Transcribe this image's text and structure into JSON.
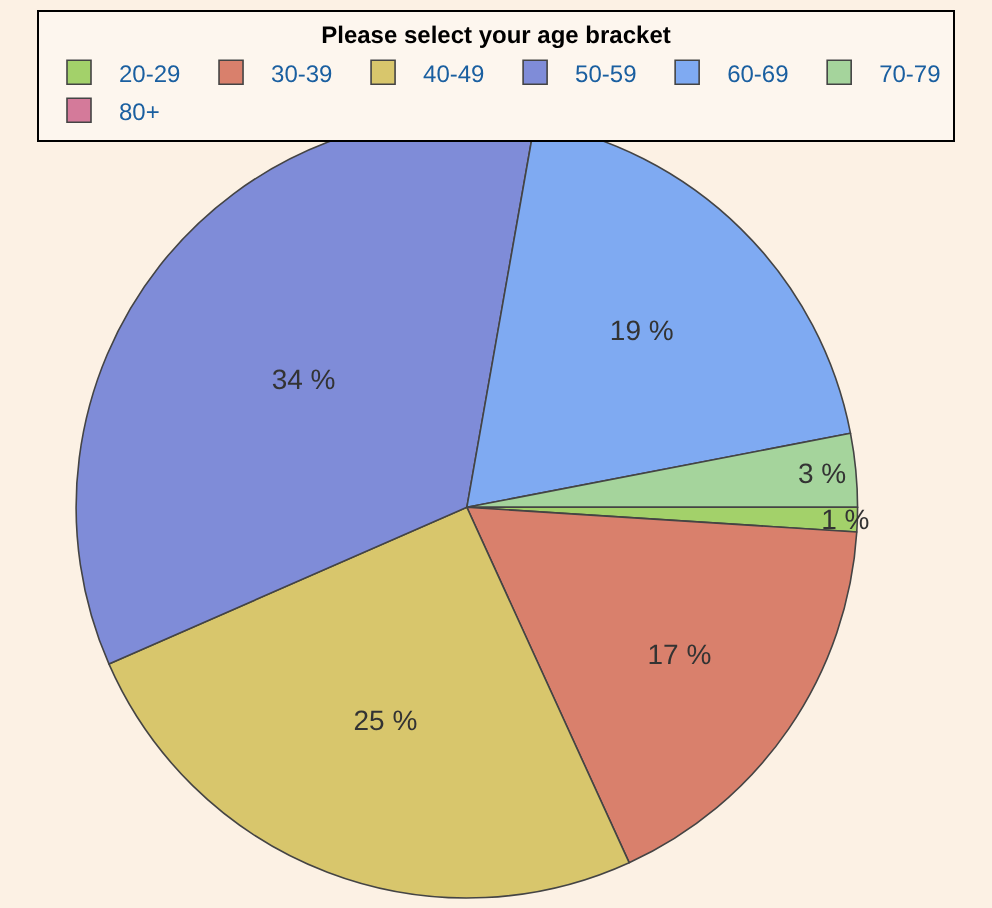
{
  "chart_data": {
    "type": "pie",
    "legend_title": "Please select your age bracket",
    "categories": [
      "20-29",
      "30-39",
      "40-49",
      "50-59",
      "60-69",
      "70-79",
      "80+"
    ],
    "values": [
      1,
      17,
      25,
      34,
      19,
      3,
      0
    ],
    "value_labels": [
      "1 %",
      "17 %",
      "25 %",
      "34 %",
      "19 %",
      "3 %",
      null
    ],
    "colors": [
      "#a3d16a",
      "#d9806c",
      "#d8c66c",
      "#7f8cd8",
      "#7faaf2",
      "#a5d49c",
      "#d47a9a"
    ],
    "legend": "top"
  }
}
